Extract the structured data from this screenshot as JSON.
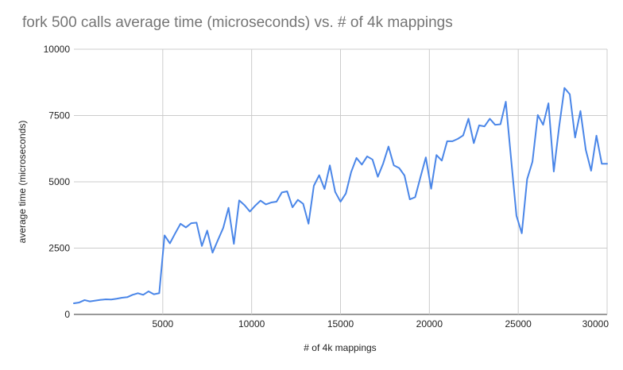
{
  "chart_data": {
    "type": "line",
    "title": "fork 500 calls average time (microseconds) vs. # of 4k mappings",
    "xlabel": "# of 4k mappings",
    "ylabel": "average time (microseconds)",
    "xlim": [
      0,
      30000
    ],
    "ylim": [
      0,
      10000
    ],
    "x_ticks": [
      5000,
      10000,
      15000,
      20000,
      25000,
      30000
    ],
    "y_ticks": [
      0,
      2500,
      5000,
      7500,
      10000
    ],
    "grid": true,
    "legend": "none",
    "series": [
      {
        "color": "#4a86e8",
        "x": [
          0,
          300,
          600,
          900,
          1200,
          1500,
          1800,
          2100,
          2400,
          2700,
          3000,
          3300,
          3600,
          3900,
          4200,
          4500,
          4800,
          5100,
          5400,
          5700,
          6000,
          6300,
          6600,
          6900,
          7200,
          7500,
          7800,
          8100,
          8400,
          8700,
          9000,
          9300,
          9600,
          9900,
          10200,
          10500,
          10800,
          11100,
          11400,
          11700,
          12000,
          12300,
          12600,
          12900,
          13200,
          13500,
          13800,
          14100,
          14400,
          14700,
          15000,
          15300,
          15600,
          15900,
          16200,
          16500,
          16800,
          17100,
          17400,
          17700,
          18000,
          18300,
          18600,
          18900,
          19200,
          19500,
          19800,
          20100,
          20400,
          20700,
          21000,
          21300,
          21600,
          21900,
          22200,
          22500,
          22800,
          23100,
          23400,
          23700,
          24000,
          24300,
          24600,
          24900,
          25200,
          25500,
          25800,
          26100,
          26400,
          26700,
          27000,
          27300,
          27600,
          27900,
          28200,
          28500,
          28800,
          29100,
          29400,
          29700,
          30000
        ],
        "values": [
          420,
          450,
          540,
          490,
          520,
          550,
          570,
          560,
          590,
          630,
          650,
          740,
          800,
          740,
          870,
          760,
          800,
          2980,
          2680,
          3060,
          3420,
          3280,
          3440,
          3460,
          2580,
          3160,
          2330,
          2800,
          3260,
          4020,
          2660,
          4300,
          4120,
          3880,
          4100,
          4290,
          4150,
          4220,
          4250,
          4600,
          4640,
          4040,
          4320,
          4170,
          3420,
          4850,
          5250,
          4730,
          5620,
          4620,
          4250,
          4560,
          5370,
          5900,
          5650,
          5960,
          5840,
          5190,
          5690,
          6330,
          5620,
          5520,
          5240,
          4340,
          4420,
          5180,
          5920,
          4740,
          6010,
          5800,
          6530,
          6530,
          6620,
          6750,
          7380,
          6460,
          7130,
          7090,
          7380,
          7150,
          7170,
          8020,
          5850,
          3720,
          3060,
          5100,
          5760,
          7520,
          7150,
          7960,
          5390,
          7070,
          8540,
          8300,
          6670,
          7670,
          6210,
          5420,
          6740,
          5680,
          5680
        ]
      }
    ]
  }
}
